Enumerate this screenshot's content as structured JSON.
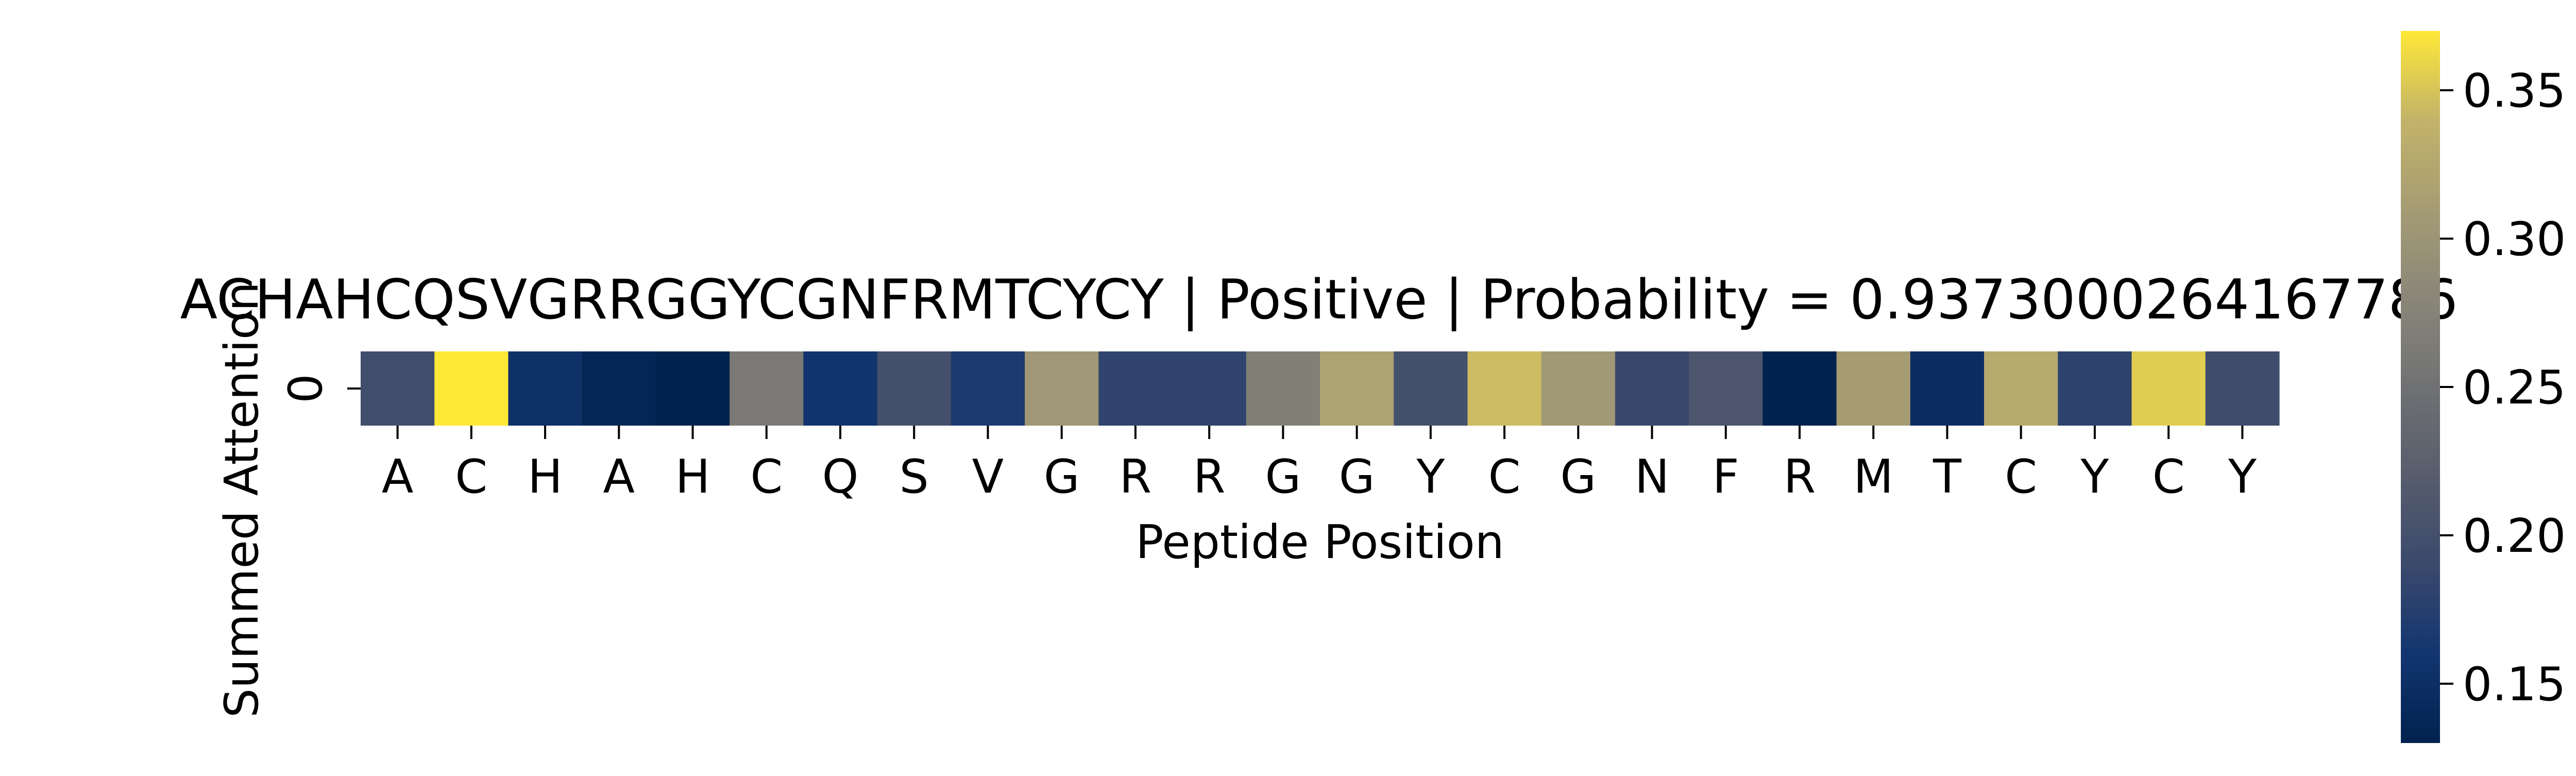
{
  "chart_data": {
    "type": "heatmap",
    "title": "ACHAHCQSVGRRGGYCGNFRMTCYCY | Positive | Probability = 0.9373000264167786",
    "xlabel": "Peptide Position",
    "ylabel": "Summed Attention",
    "row_labels": [
      "0"
    ],
    "categories": [
      "A",
      "C",
      "H",
      "A",
      "H",
      "C",
      "Q",
      "S",
      "V",
      "G",
      "R",
      "R",
      "G",
      "G",
      "Y",
      "C",
      "G",
      "N",
      "F",
      "R",
      "M",
      "T",
      "C",
      "Y",
      "C",
      "Y"
    ],
    "values": [
      [
        0.196,
        0.37,
        0.153,
        0.137,
        0.13,
        0.262,
        0.158,
        0.2,
        0.168,
        0.303,
        0.182,
        0.182,
        0.27,
        0.318,
        0.2,
        0.345,
        0.305,
        0.188,
        0.208,
        0.13,
        0.31,
        0.148,
        0.328,
        0.18,
        0.355,
        0.195
      ]
    ],
    "colormap": "cividis",
    "colorbar": {
      "range": [
        0.13,
        0.37
      ],
      "ticks": [
        0.15,
        0.2,
        0.25,
        0.3,
        0.35
      ],
      "tick_labels": [
        "0.15",
        "0.20",
        "0.25",
        "0.30",
        "0.35"
      ]
    }
  }
}
